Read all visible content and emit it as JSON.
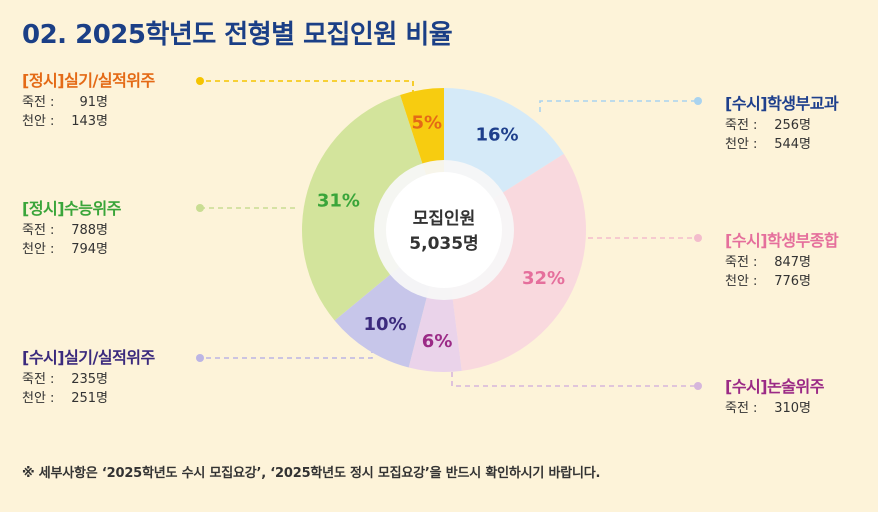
{
  "title": "02. 2025학년도 전형별 모집인원 비율",
  "center": {
    "label": "모집인원",
    "total": "5,035명"
  },
  "campus_labels": {
    "a": "죽전 :",
    "b": "천안 :"
  },
  "note": "※ 세부사항은 ‘2025학년도 수시 모집요강’, ‘2025학년도 정시 모집요강’을 반드시 확인하시기 바랍니다.",
  "chart_data": {
    "type": "pie",
    "title": "02. 2025학년도 전형별 모집인원 비율",
    "center_text": "모집인원 5,035명",
    "slices": [
      {
        "name": "[수시]학생부교과",
        "percent": "16%",
        "value": 16,
        "color": "#d5eaf8",
        "text_color": "#1e3f8c",
        "jukjeon": "256명",
        "cheonan": "544명"
      },
      {
        "name": "[수시]학생부종합",
        "percent": "32%",
        "value": 32,
        "color": "#f9d9de",
        "text_color": "#e56f9c",
        "jukjeon": "847명",
        "cheonan": "776명"
      },
      {
        "name": "[수시]논술위주",
        "percent": "6%",
        "value": 6,
        "color": "#ead3ea",
        "text_color": "#9b2a86",
        "jukjeon": "310명"
      },
      {
        "name": "[수시]실기/실적위주",
        "percent": "10%",
        "value": 10,
        "color": "#c7c6ea",
        "text_color": "#3b2a7d",
        "jukjeon": "235명",
        "cheonan": "251명"
      },
      {
        "name": "[정시]수능위주",
        "percent": "31%",
        "value": 31,
        "color": "#d3e49c",
        "text_color": "#3aa53a",
        "jukjeon": "788명",
        "cheonan": "794명"
      },
      {
        "name": "[정시]실기/실적위주",
        "percent": "5%",
        "value": 5,
        "color": "#f7cc10",
        "text_color": "#e46a16",
        "jukjeon": "91명",
        "cheonan": "143명"
      }
    ]
  }
}
